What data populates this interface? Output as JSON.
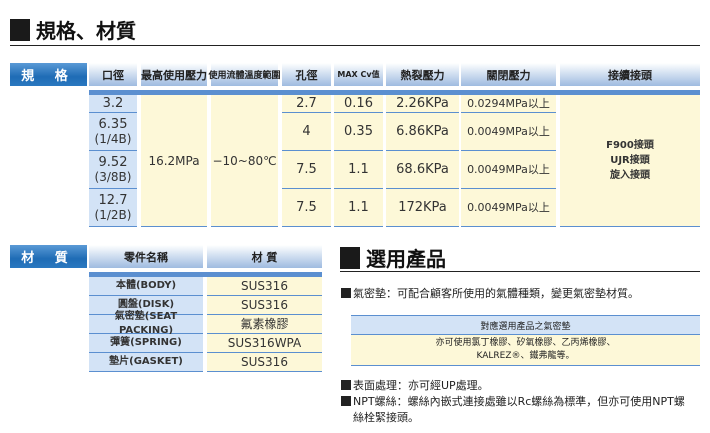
{
  "spec_title": "規格、材質",
  "spec_table": {
    "label": "規 格",
    "headers": [
      "口徑",
      "最高使用壓力",
      "使用流體溫度範圍",
      "孔徑",
      "MAX Cv值",
      "熱裂壓力",
      "關閉壓力",
      "接續接頭"
    ],
    "rows": [
      {
        "size": "3.2",
        "size_sub": "",
        "bore": "2.7",
        "cv": "0.16",
        "crack": "2.26KPa",
        "close": "0.0294MPa以上"
      },
      {
        "size": "6.35",
        "size_sub": "(1/4B)",
        "bore": "4",
        "cv": "0.35",
        "crack": "6.86KPa",
        "close": "0.0049MPa以上"
      },
      {
        "size": "9.52",
        "size_sub": "(3/8B)",
        "bore": "7.5",
        "cv": "1.1",
        "crack": "68.6KPa",
        "close": "0.0049MPa以上"
      },
      {
        "size": "12.7",
        "size_sub": "(1/2B)",
        "bore": "7.5",
        "cv": "1.1",
        "crack": "172KPa",
        "close": "0.0049MPa以上"
      }
    ],
    "max_pressure": "16.2MPa",
    "temp_range": "−10~80℃",
    "connections": [
      "F900接頭",
      "UJR接頭",
      "旋入接頭"
    ]
  },
  "material_table": {
    "label": "材 質",
    "headers": [
      "零件名稱",
      "材 質"
    ],
    "rows": [
      {
        "part": "本體(BODY)",
        "material": "SUS316"
      },
      {
        "part": "圓盤(DISK)",
        "material": "SUS316"
      },
      {
        "part": "氣密墊(SEAT PACKING)",
        "material": "氟素橡膠"
      },
      {
        "part": "彈簧(SPRING)",
        "material": "SUS316WPA"
      },
      {
        "part": "墊片(GASKET)",
        "material": "SUS316"
      }
    ]
  },
  "options": {
    "title": "選用產品",
    "seat_note": "氣密墊：可配合顧客所使用的氣體種類，變更氣密墊材質。",
    "box_header": "對應選用產品之氣密墊",
    "box_line1": "亦可使用氯丁橡膠、矽氧橡膠、乙丙烯橡膠、",
    "box_line2": "KALREZ®、鐵弗龍等。",
    "surface_note": "表面處理：亦可經UP處理。",
    "npt_note_1": "NPT螺絲：螺絲內嵌式連接處雖以Rc螺絲為標準，但亦可使用NPT螺",
    "npt_note_2": "絲栓緊接頭。"
  },
  "colors": {
    "header_blue": "#1f6cb5",
    "row_blue": "#d3e3f6",
    "row_yellow": "#fdf8d8",
    "line_blue": "#5b8fd0"
  }
}
